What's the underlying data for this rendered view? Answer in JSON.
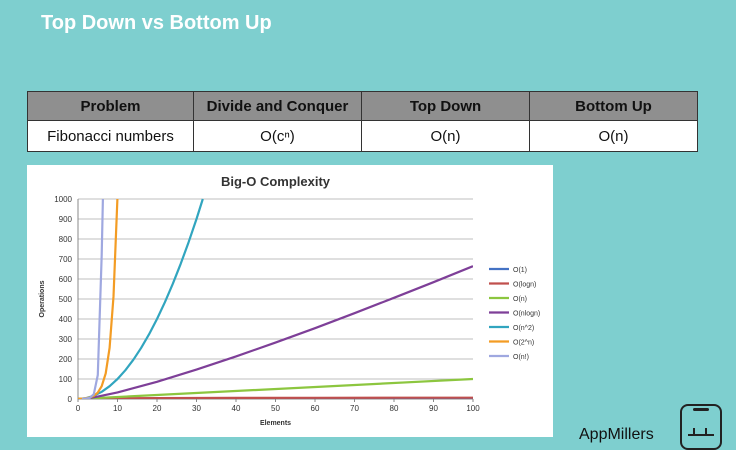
{
  "slide": {
    "title": "Top Down vs Bottom Up"
  },
  "table": {
    "headers": [
      "Problem",
      "Divide and Conquer",
      "Top Down",
      "Bottom Up"
    ],
    "rows": [
      [
        "Fibonacci numbers",
        "O(cⁿ)",
        "O(n)",
        "O(n)"
      ]
    ]
  },
  "chart_data": {
    "type": "line",
    "title": "Big-O Complexity",
    "xlabel": "Elements",
    "ylabel": "Operations",
    "xlim": [
      0,
      100
    ],
    "ylim": [
      0,
      1000
    ],
    "xticks": [
      0,
      10,
      20,
      30,
      40,
      50,
      60,
      70,
      80,
      90,
      100
    ],
    "yticks": [
      0,
      100,
      200,
      300,
      400,
      500,
      600,
      700,
      800,
      900,
      1000
    ],
    "grid": true,
    "legend_position": "right",
    "series": [
      {
        "name": "O(1)",
        "color": "#4472c4",
        "x": [
          0,
          100
        ],
        "y": [
          1,
          1
        ]
      },
      {
        "name": "O(logn)",
        "color": "#c0504d",
        "x": [
          1,
          10,
          20,
          40,
          60,
          80,
          100
        ],
        "y": [
          0,
          3.3,
          4.3,
          5.3,
          5.9,
          6.3,
          6.6
        ]
      },
      {
        "name": "O(n)",
        "color": "#8cc63f",
        "x": [
          0,
          100
        ],
        "y": [
          0,
          100
        ]
      },
      {
        "name": "O(nlogn)",
        "color": "#7e3f98",
        "x": [
          1,
          2,
          5,
          10,
          20,
          30,
          40,
          50,
          60,
          70,
          80,
          90,
          100
        ],
        "y": [
          0,
          2,
          12,
          33,
          86,
          147,
          213,
          282,
          354,
          429,
          506,
          584,
          664
        ]
      },
      {
        "name": "O(n^2)",
        "color": "#31a5bf",
        "x": [
          0,
          2,
          4,
          6,
          8,
          10,
          12,
          14,
          16,
          18,
          20,
          22,
          24,
          26,
          28,
          30,
          31.6
        ],
        "y": [
          0,
          4,
          16,
          36,
          64,
          100,
          144,
          196,
          256,
          324,
          400,
          484,
          576,
          676,
          784,
          900,
          1000
        ]
      },
      {
        "name": "O(2^n)",
        "color": "#f39c24",
        "x": [
          0,
          1,
          2,
          3,
          4,
          5,
          6,
          7,
          8,
          9,
          9.97
        ],
        "y": [
          1,
          2,
          4,
          8,
          16,
          32,
          64,
          128,
          256,
          512,
          1000
        ]
      },
      {
        "name": "O(n!)",
        "color": "#9fa8e0",
        "x": [
          1,
          2,
          3,
          4,
          5,
          6,
          6.3
        ],
        "y": [
          1,
          2,
          6,
          24,
          120,
          720,
          1000
        ]
      }
    ]
  },
  "footer": {
    "brand": "AppMillers"
  },
  "icons": {
    "brand_logo": "phone-factory-icon"
  }
}
